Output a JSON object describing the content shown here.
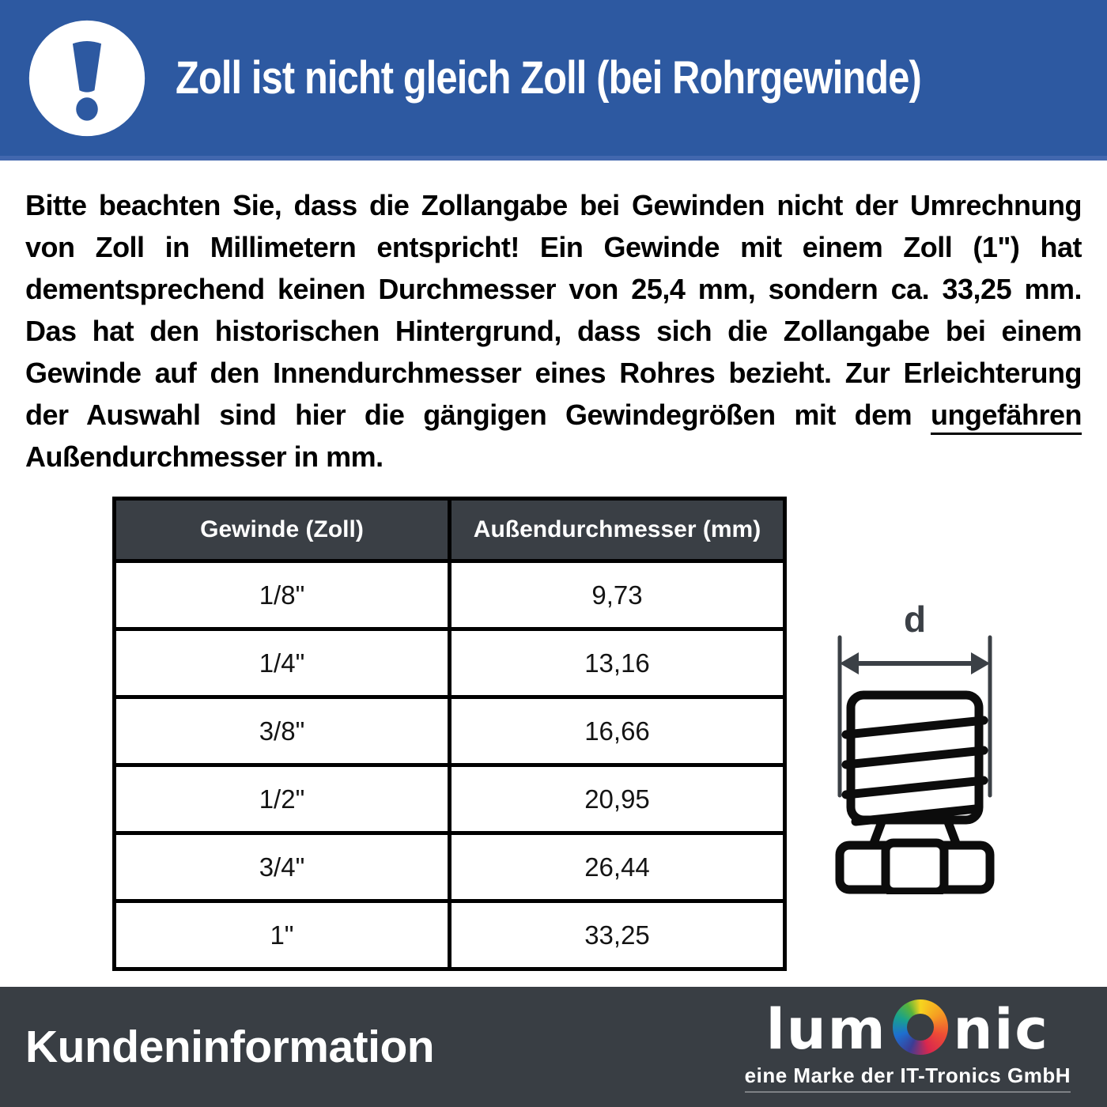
{
  "header": {
    "title": "Zoll ist nicht gleich Zoll (bei Rohrgewinde)",
    "icon": "exclamation-icon"
  },
  "paragraph": {
    "lines": [
      "Bitte beachten Sie, dass die Zollangabe bei Gewinden nicht der Umrechnung",
      "von Zoll in Millimetern entspricht! Ein Gewinde mit einem Zoll (1\") hat",
      "dementsprechend keinen Durchmesser von 25,4 mm, sondern ca. 33,25 mm.",
      "Das hat den historischen Hintergrund, dass sich die Zollangabe bei einem",
      "Gewinde auf den Innendurchmesser eines Rohres bezieht. Zur Erleichterung",
      "der Auswahl sind hier die gängigen Gewindegrößen mit dem ungefähren",
      "Außendurchmesser in mm."
    ],
    "underlined_word": "ungefähren"
  },
  "table": {
    "headers": [
      "Gewinde (Zoll)",
      "Außendurchmesser (mm)"
    ],
    "rows": [
      [
        "1/8\"",
        "9,73"
      ],
      [
        "1/4\"",
        "13,16"
      ],
      [
        "3/8\"",
        "16,66"
      ],
      [
        "1/2\"",
        "20,95"
      ],
      [
        "3/4\"",
        "26,44"
      ],
      [
        "1\"",
        "33,25"
      ]
    ]
  },
  "diagram": {
    "dimension_label": "d",
    "depicts": "threaded-pipe-fitting-outer-diameter"
  },
  "footer": {
    "heading": "Kundeninformation",
    "logo_pre": "lum",
    "logo_post": "nic",
    "tagline": "eine Marke der IT-Tronics GmbH"
  },
  "colors": {
    "header_blue": "#2d59a1",
    "dark_panel": "#393e44",
    "table_header_bg": "#3a3f45",
    "dimension_gray": "#3b4046",
    "ring_gradient": [
      "#f6d41f",
      "#f59d22",
      "#ee4c35",
      "#d9274e",
      "#3c3c94",
      "#1e6fd0",
      "#18a28c",
      "#58b33c"
    ]
  }
}
